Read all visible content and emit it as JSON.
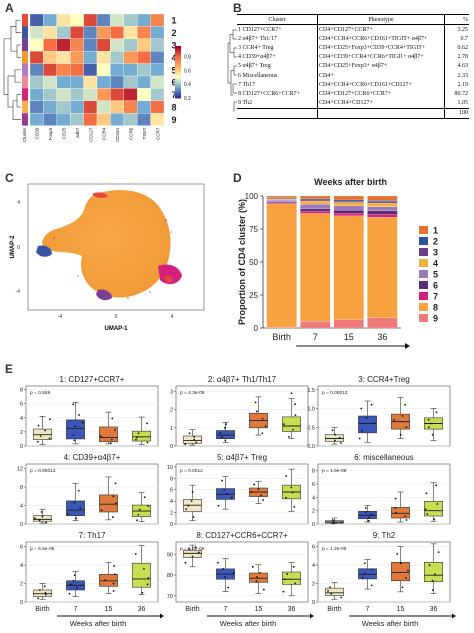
{
  "panel_labels": {
    "a": "A",
    "b": "B",
    "c": "C",
    "d": "D",
    "e": "E"
  },
  "heatmap": {
    "row_labels": [
      "1",
      "2",
      "3",
      "4",
      "5",
      "6",
      "7",
      "8",
      "9"
    ],
    "col_labels": [
      "CD39",
      "Foxp3",
      "CD25",
      "a4b7",
      "CD127",
      "CCR4",
      "CD161",
      "CCR6",
      "TIGIT",
      "CCR7"
    ],
    "side_label": "Cluster",
    "scale_ticks": [
      "0.8",
      "0.6",
      "0.4",
      "0.2"
    ],
    "cluster_colors": [
      "#e8483c",
      "#3a55a4",
      "#7a3f94",
      "#f39a2b",
      "#b07cc6",
      "#ec8a9e",
      "#d6207f",
      "#f3b24a",
      "#9c3a9c"
    ],
    "values": [
      [
        0.25,
        0.35,
        0.55,
        0.5,
        0.85,
        0.3,
        0.45,
        0.4,
        0.35,
        0.75
      ],
      [
        0.45,
        0.55,
        0.4,
        0.85,
        0.3,
        0.7,
        0.8,
        0.55,
        0.75,
        0.35
      ],
      [
        0.5,
        0.8,
        0.9,
        0.75,
        0.3,
        0.85,
        0.45,
        0.4,
        0.6,
        0.4
      ],
      [
        0.85,
        0.6,
        0.55,
        0.7,
        0.35,
        0.55,
        0.4,
        0.7,
        0.8,
        0.3
      ],
      [
        0.3,
        0.85,
        0.75,
        0.8,
        0.25,
        0.5,
        0.35,
        0.35,
        0.4,
        0.35
      ],
      [
        0.4,
        0.45,
        0.35,
        0.35,
        0.55,
        0.35,
        0.3,
        0.4,
        0.35,
        0.45
      ],
      [
        0.35,
        0.4,
        0.45,
        0.4,
        0.45,
        0.7,
        0.85,
        0.9,
        0.5,
        0.4
      ],
      [
        0.3,
        0.35,
        0.4,
        0.35,
        0.85,
        0.45,
        0.6,
        0.75,
        0.35,
        0.8
      ],
      [
        0.35,
        0.3,
        0.35,
        0.4,
        0.8,
        0.6,
        0.35,
        0.4,
        0.3,
        0.55
      ]
    ]
  },
  "table": {
    "headers": [
      "Cluster",
      "Phenotype",
      "%"
    ],
    "rows": [
      {
        "cluster": "1 CD127+CCR7+",
        "phenotype": "CD4+CD127+CCR7+",
        "pct": "3.25"
      },
      {
        "cluster": "2 α4β7+ Th1/17",
        "phenotype": "CD4+CCR4+CCR6+CD161+TIGIT+ α4β7+",
        "pct": "0.7"
      },
      {
        "cluster": "3 CCR4+ Treg",
        "phenotype": "CD4+CD25+Foxp3+CD39+CCR4+TIGIT+",
        "pct": "0.62"
      },
      {
        "cluster": "4 CD39+α4β7+",
        "phenotype": "CD4+CD39+CCR4+CCR6+TIGI1+ α4β7+",
        "pct": "2.78"
      },
      {
        "cluster": "5 α4β7+ Treg",
        "phenotype": "CD4+CD25+Foxp3+ α4β7+",
        "pct": "4.63"
      },
      {
        "cluster": "6 Miscellaneous",
        "phenotype": "CD4+",
        "pct": "2.33"
      },
      {
        "cluster": "7 Th17",
        "phenotype": "CD4+CCR4+CCR6+CD161+CD127+",
        "pct": "2.19"
      },
      {
        "cluster": "8 CD127+CCR6+CCR7+",
        "phenotype": "CD4+CD127+CCR6+CCR7+",
        "pct": "80.72"
      },
      {
        "cluster": "9 Th2",
        "phenotype": "CD4+CCR4+CD127+",
        "pct": "1.05"
      }
    ],
    "total": "100"
  },
  "umap": {
    "xlabel": "UMAP-1",
    "ylabel": "UMAP-2",
    "xticks": [
      "-4",
      "0",
      "4"
    ],
    "yticks": [
      "4",
      "0",
      "-4"
    ]
  },
  "chart_data": [
    {
      "type": "bar",
      "title": "",
      "ylabel": "Proportion of CD4 cluster (%)",
      "xlabel": "Weeks after birth",
      "categories": [
        "Birth",
        "7",
        "15",
        "36"
      ],
      "yticks": [
        "0",
        "25",
        "50",
        "75",
        "100"
      ],
      "ylim": [
        0,
        100
      ],
      "legend_placement": "right",
      "stacked": true,
      "series": [
        {
          "name": "1",
          "color": "#e8722c",
          "values": [
            1.2,
            2.2,
            3.0,
            3.4
          ]
        },
        {
          "name": "2",
          "color": "#2f4fa0",
          "values": [
            0.5,
            0.8,
            1.0,
            0.9
          ]
        },
        {
          "name": "3",
          "color": "#6b3a8c",
          "values": [
            0.6,
            0.8,
            0.9,
            1.0
          ]
        },
        {
          "name": "4",
          "color": "#f0b23c",
          "values": [
            0.8,
            2.4,
            2.6,
            2.8
          ]
        },
        {
          "name": "5",
          "color": "#9c7ab8",
          "values": [
            1.2,
            3.6,
            3.4,
            3.2
          ]
        },
        {
          "name": "6",
          "color": "#5a2a78",
          "values": [
            0.8,
            1.8,
            2.2,
            2.6
          ]
        },
        {
          "name": "7",
          "color": "#d4207c",
          "values": [
            0.7,
            1.6,
            1.9,
            2.2
          ]
        },
        {
          "name": "8",
          "color": "#f7a13f",
          "values": [
            93.5,
            81.6,
            78.6,
            76.0
          ]
        },
        {
          "name": "9",
          "color": "#f07a7a",
          "values": [
            0.7,
            5.2,
            6.4,
            7.9
          ]
        }
      ]
    },
    {
      "type": "box",
      "title": "1: CD127+CCR7+",
      "pvalue": "p = 0.559",
      "categories": [
        "Birth",
        "7",
        "15",
        "36"
      ],
      "yticks": [
        "0",
        "2",
        "4",
        "6",
        "8"
      ],
      "ylim": [
        0,
        8.5
      ],
      "colors": [
        "#efe6c2",
        "#3b55b8",
        "#e07a3c",
        "#c6de52"
      ],
      "boxes": [
        {
          "min": 0.2,
          "q1": 0.9,
          "median": 1.6,
          "q3": 2.4,
          "max": 4.2
        },
        {
          "min": 0.3,
          "q1": 1.0,
          "median": 2.5,
          "q3": 3.7,
          "max": 6.2
        },
        {
          "min": 0.3,
          "q1": 0.6,
          "median": 1.2,
          "q3": 2.7,
          "max": 4.8
        },
        {
          "min": 0.2,
          "q1": 0.7,
          "median": 1.3,
          "q3": 2.1,
          "max": 4.1
        }
      ],
      "points": [
        [
          0.6,
          1.1,
          1.4,
          2.2,
          2.9,
          3.8
        ],
        [
          0.8,
          1.5,
          2.8,
          3.3,
          4.4,
          5.9
        ],
        [
          0.4,
          0.9,
          1.4,
          2.3,
          3.9
        ],
        [
          0.5,
          0.9,
          1.2,
          1.8,
          3.2
        ]
      ]
    },
    {
      "type": "box",
      "title": "2: α4β7+ Th1/Th17",
      "pvalue": "p = 4.3e-05",
      "categories": [
        "Birth",
        "7",
        "15",
        "36"
      ],
      "yticks": [
        "0",
        "1",
        "2",
        "3"
      ],
      "ylim": [
        0,
        3.3
      ],
      "colors": [
        "#efe6c2",
        "#3b55b8",
        "#e07a3c",
        "#c6de52"
      ],
      "boxes": [
        {
          "min": 0.05,
          "q1": 0.15,
          "median": 0.3,
          "q3": 0.55,
          "max": 0.9
        },
        {
          "min": 0.2,
          "q1": 0.4,
          "median": 0.6,
          "q3": 0.85,
          "max": 1.3
        },
        {
          "min": 0.6,
          "q1": 1.0,
          "median": 1.4,
          "q3": 1.8,
          "max": 2.7
        },
        {
          "min": 0.4,
          "q1": 0.8,
          "median": 1.1,
          "q3": 1.6,
          "max": 2.6
        }
      ],
      "points": [
        [
          0.1,
          0.2,
          0.35,
          0.5,
          0.7
        ],
        [
          0.3,
          0.5,
          0.7,
          1.0,
          1.2
        ],
        [
          0.7,
          1.1,
          1.5,
          1.9,
          2.4
        ],
        [
          0.5,
          0.9,
          1.2,
          1.7,
          2.3,
          2.9
        ]
      ]
    },
    {
      "type": "box",
      "title": "3: CCR4+Treg",
      "pvalue": "p = 0.00013",
      "categories": [
        "Birth",
        "7",
        "15",
        "36"
      ],
      "yticks": [
        "0.0",
        "0.5",
        "1.0",
        "1.5"
      ],
      "ylim": [
        0,
        1.6
      ],
      "colors": [
        "#efe6c2",
        "#3b55b8",
        "#e07a3c",
        "#c6de52"
      ],
      "boxes": [
        {
          "min": 0.05,
          "q1": 0.12,
          "median": 0.2,
          "q3": 0.3,
          "max": 0.5
        },
        {
          "min": 0.1,
          "q1": 0.35,
          "median": 0.6,
          "q3": 0.8,
          "max": 1.2
        },
        {
          "min": 0.2,
          "q1": 0.45,
          "median": 0.65,
          "q3": 0.85,
          "max": 1.3
        },
        {
          "min": 0.15,
          "q1": 0.45,
          "median": 0.6,
          "q3": 0.75,
          "max": 1.0
        }
      ],
      "points": [
        [
          0.08,
          0.15,
          0.22,
          0.3,
          0.42
        ],
        [
          0.2,
          0.4,
          0.6,
          0.75,
          1.0,
          1.1
        ],
        [
          0.3,
          0.5,
          0.7,
          0.8,
          1.1
        ],
        [
          0.3,
          0.5,
          0.6,
          0.7,
          0.9
        ]
      ]
    },
    {
      "type": "box",
      "title": "4: CD39+α4β7+",
      "pvalue": "p = 0.00013",
      "categories": [
        "Birth",
        "7",
        "15",
        "36"
      ],
      "yticks": [
        "0",
        "4",
        "8",
        "12"
      ],
      "ylim": [
        0,
        13
      ],
      "colors": [
        "#efe6c2",
        "#3b55b8",
        "#e07a3c",
        "#c6de52"
      ],
      "boxes": [
        {
          "min": 0.2,
          "q1": 0.6,
          "median": 1.0,
          "q3": 1.8,
          "max": 3.2
        },
        {
          "min": 0.8,
          "q1": 1.8,
          "median": 3.0,
          "q3": 5.0,
          "max": 8.8
        },
        {
          "min": 0.9,
          "q1": 2.6,
          "median": 4.3,
          "q3": 6.3,
          "max": 10.2
        },
        {
          "min": 0.5,
          "q1": 1.6,
          "median": 2.8,
          "q3": 4.1,
          "max": 6.8
        }
      ],
      "points": [
        [
          0.3,
          0.8,
          1.2,
          1.6,
          2.6
        ],
        [
          1.2,
          2.2,
          3.4,
          4.6,
          7.2
        ],
        [
          1.5,
          3.0,
          4.5,
          6.0,
          8.8
        ],
        [
          0.8,
          2.0,
          3.1,
          3.9,
          5.8
        ]
      ]
    },
    {
      "type": "box",
      "title": "5: α4β7+ Treg",
      "pvalue": "p = 0.0012",
      "categories": [
        "Birth",
        "7",
        "15",
        "36"
      ],
      "yticks": [
        "0",
        "2",
        "4",
        "6",
        "8",
        "10"
      ],
      "ylim": [
        0,
        10.5
      ],
      "colors": [
        "#efe6c2",
        "#3b55b8",
        "#e07a3c",
        "#c6de52"
      ],
      "boxes": [
        {
          "min": 0.6,
          "q1": 2.2,
          "median": 3.3,
          "q3": 4.3,
          "max": 6.8
        },
        {
          "min": 2.6,
          "q1": 4.3,
          "median": 5.2,
          "q3": 6.2,
          "max": 8.3
        },
        {
          "min": 3.6,
          "q1": 4.8,
          "median": 5.6,
          "q3": 6.3,
          "max": 7.4
        },
        {
          "min": 2.2,
          "q1": 4.4,
          "median": 5.6,
          "q3": 6.8,
          "max": 9.6
        }
      ],
      "points": [
        [
          1.2,
          2.6,
          3.2,
          4.0,
          5.6
        ],
        [
          3.2,
          4.6,
          5.3,
          6.0,
          7.6
        ],
        [
          4.2,
          5.0,
          5.6,
          6.1,
          6.9
        ],
        [
          3.0,
          4.6,
          5.5,
          6.4,
          8.4
        ]
      ]
    },
    {
      "type": "box",
      "title": "6: miscellaneous",
      "pvalue": "p = 1.9e-09",
      "categories": [
        "Birth",
        "7",
        "15",
        "36"
      ],
      "yticks": [
        "0",
        "2",
        "4",
        "6",
        "8"
      ],
      "ylim": [
        0,
        9
      ],
      "colors": [
        "#efe6c2",
        "#3b55b8",
        "#e07a3c",
        "#c6de52"
      ],
      "boxes": [
        {
          "min": 0.05,
          "q1": 0.15,
          "median": 0.3,
          "q3": 0.5,
          "max": 0.9
        },
        {
          "min": 0.3,
          "q1": 0.8,
          "median": 1.3,
          "q3": 1.9,
          "max": 2.8
        },
        {
          "min": 0.3,
          "q1": 0.9,
          "median": 1.6,
          "q3": 2.5,
          "max": 4.8
        },
        {
          "min": 0.4,
          "q1": 1.2,
          "median": 2.0,
          "q3": 3.4,
          "max": 6.2
        }
      ],
      "points": [
        [
          0.1,
          0.2,
          0.35,
          0.6
        ],
        [
          0.5,
          1.0,
          1.4,
          1.8,
          2.4
        ],
        [
          0.6,
          1.2,
          1.7,
          2.4,
          3.8
        ],
        [
          0.7,
          1.5,
          2.2,
          3.0,
          4.6,
          5.8
        ]
      ]
    },
    {
      "type": "box",
      "title": "7: Th17",
      "pvalue": "p = 5.6e-05",
      "categories": [
        "Birth",
        "7",
        "15",
        "36"
      ],
      "yticks": [
        "0",
        "2",
        "4",
        "6"
      ],
      "ylim": [
        0,
        6.5
      ],
      "colors": [
        "#efe6c2",
        "#3b55b8",
        "#e07a3c",
        "#c6de52"
      ],
      "boxes": [
        {
          "min": 0.3,
          "q1": 0.6,
          "median": 0.9,
          "q3": 1.3,
          "max": 2.0
        },
        {
          "min": 0.6,
          "q1": 1.3,
          "median": 1.8,
          "q3": 2.3,
          "max": 3.3
        },
        {
          "min": 0.9,
          "q1": 1.7,
          "median": 2.3,
          "q3": 3.0,
          "max": 4.3
        },
        {
          "min": 0.8,
          "q1": 1.6,
          "median": 2.5,
          "q3": 4.2,
          "max": 6.1
        }
      ],
      "points": [
        [
          0.4,
          0.8,
          1.0,
          1.3,
          1.7
        ],
        [
          0.9,
          1.5,
          1.9,
          2.3,
          2.9
        ],
        [
          1.2,
          2.0,
          2.4,
          3.0,
          3.9
        ],
        [
          1.0,
          1.9,
          2.6,
          3.6,
          5.2
        ]
      ]
    },
    {
      "type": "box",
      "title": "8: CD127+CCR6+CCR7+",
      "pvalue": "p = 6.6e-06",
      "categories": [
        "Birth",
        "7",
        "15",
        "36"
      ],
      "yticks": [
        "70",
        "80",
        "90"
      ],
      "ylim": [
        67,
        96
      ],
      "colors": [
        "#efe6c2",
        "#3b55b8",
        "#e07a3c",
        "#c6de52"
      ],
      "boxes": [
        {
          "min": 84.0,
          "q1": 88.5,
          "median": 90.5,
          "q3": 92.0,
          "max": 94.5
        },
        {
          "min": 72.0,
          "q1": 78.0,
          "median": 80.5,
          "q3": 83.0,
          "max": 88.0
        },
        {
          "min": 71.0,
          "q1": 76.5,
          "median": 78.5,
          "q3": 81.0,
          "max": 85.0
        },
        {
          "min": 70.0,
          "q1": 75.5,
          "median": 78.0,
          "q3": 81.5,
          "max": 86.0
        }
      ],
      "points": [
        [
          86.0,
          89.0,
          91.0,
          92.5,
          93.5
        ],
        [
          74.0,
          79.0,
          81.0,
          83.0,
          86.0
        ],
        [
          73.0,
          77.0,
          79.0,
          81.0,
          84.0
        ],
        [
          72.0,
          76.0,
          78.0,
          80.5,
          84.0
        ]
      ]
    },
    {
      "type": "box",
      "title": "9: Th2",
      "pvalue": "p = 1.2e-05",
      "categories": [
        "Birth",
        "7",
        "15",
        "36"
      ],
      "yticks": [
        "0",
        "2",
        "4",
        "6"
      ],
      "ylim": [
        0,
        6.5
      ],
      "colors": [
        "#efe6c2",
        "#3b55b8",
        "#e07a3c",
        "#c6de52"
      ],
      "boxes": [
        {
          "min": 0.3,
          "q1": 0.7,
          "median": 1.0,
          "q3": 1.5,
          "max": 2.1
        },
        {
          "min": 1.4,
          "q1": 2.5,
          "median": 3.0,
          "q3": 3.6,
          "max": 4.6
        },
        {
          "min": 1.1,
          "q1": 2.3,
          "median": 3.2,
          "q3": 4.3,
          "max": 6.0
        },
        {
          "min": 0.9,
          "q1": 2.2,
          "median": 2.9,
          "q3": 4.3,
          "max": 6.3
        }
      ],
      "points": [
        [
          0.5,
          0.9,
          1.2,
          1.6
        ],
        [
          1.8,
          2.6,
          3.1,
          3.5,
          4.2
        ],
        [
          1.6,
          2.6,
          3.4,
          4.2,
          5.2
        ],
        [
          1.3,
          2.3,
          3.0,
          4.0,
          5.4
        ]
      ]
    }
  ],
  "box_xlabel": "Weeks after birth"
}
